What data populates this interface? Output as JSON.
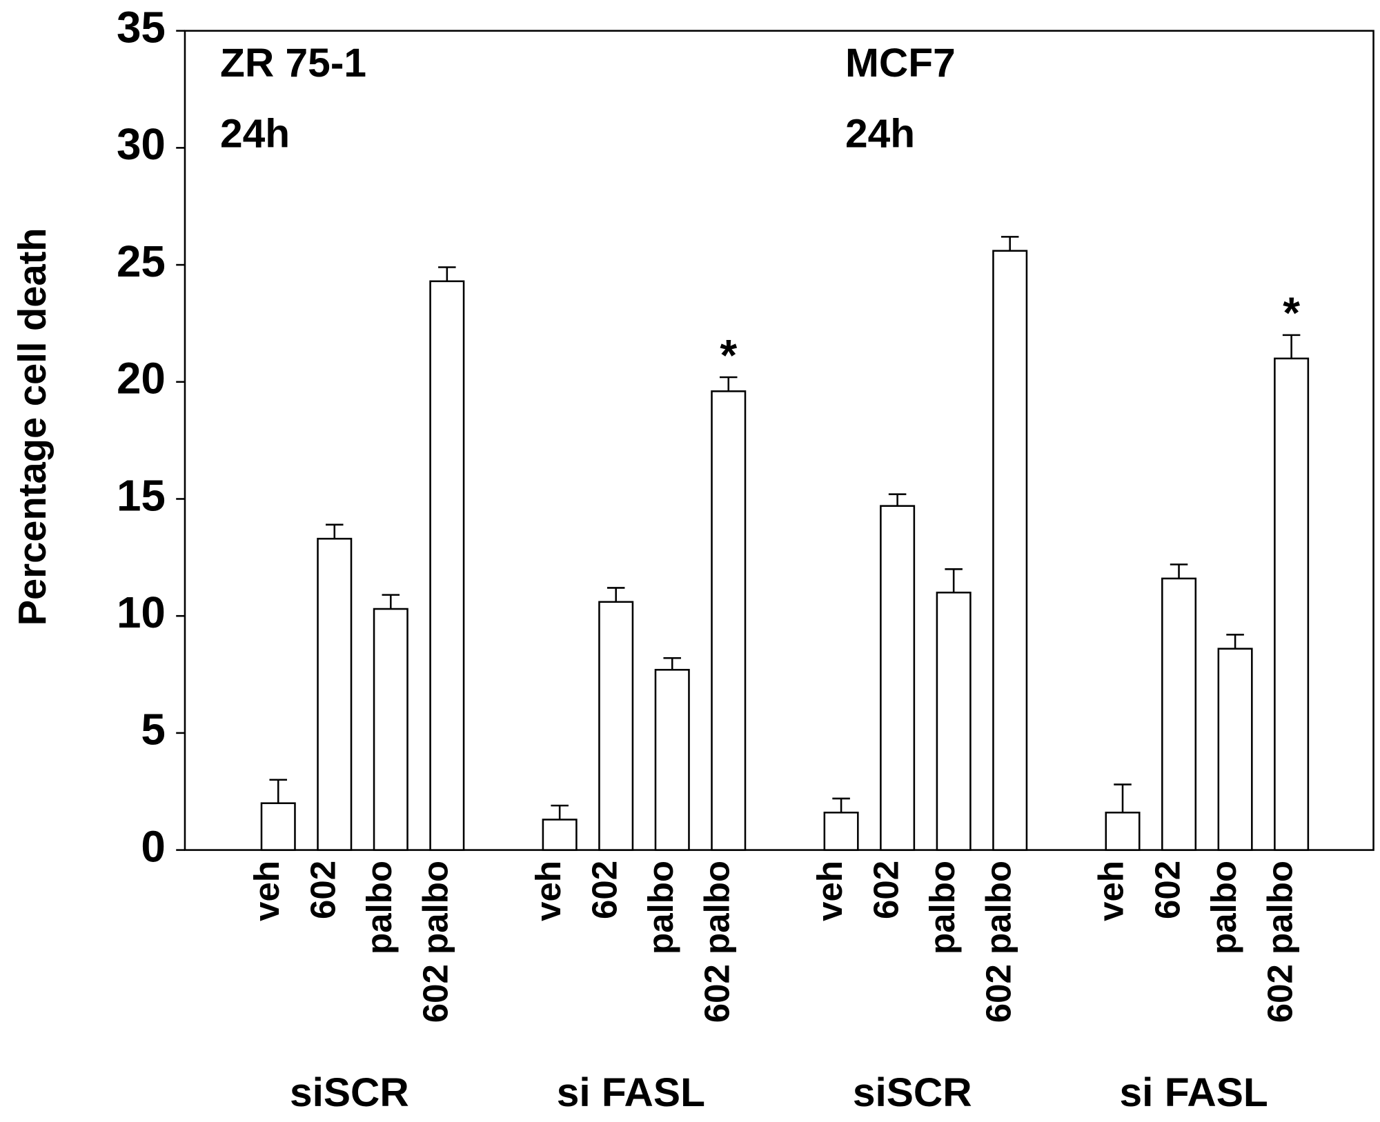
{
  "chart_data": {
    "type": "bar",
    "y_label": "Percentage cell death",
    "panel_labels": [
      [
        "ZR 75-1",
        "24h"
      ],
      [
        "MCF7",
        "24h"
      ]
    ],
    "groups": [
      "siSCR",
      "si FASL",
      "siSCR",
      "si FASL"
    ],
    "categories": [
      "veh",
      "602",
      "palbo",
      "602 palbo",
      "veh",
      "602",
      "palbo",
      "602 palbo",
      "veh",
      "602",
      "palbo",
      "602 palbo",
      "veh",
      "602",
      "palbo",
      "602 palbo"
    ],
    "values": [
      2.0,
      13.3,
      10.3,
      24.3,
      1.3,
      10.6,
      7.7,
      19.6,
      1.6,
      14.7,
      11.0,
      25.6,
      1.6,
      11.6,
      8.6,
      21.0
    ],
    "errors": [
      1.0,
      0.6,
      0.6,
      0.6,
      0.6,
      0.6,
      0.5,
      0.6,
      0.6,
      0.5,
      1.0,
      0.6,
      1.2,
      0.6,
      0.6,
      1.0
    ],
    "significance": [
      null,
      null,
      null,
      null,
      null,
      null,
      null,
      "*",
      null,
      null,
      null,
      null,
      null,
      null,
      null,
      "*"
    ],
    "color": "#ffffff",
    "ylim": [
      0,
      35
    ],
    "yticks": [
      0,
      5,
      10,
      15,
      20,
      25,
      30,
      35
    ]
  }
}
